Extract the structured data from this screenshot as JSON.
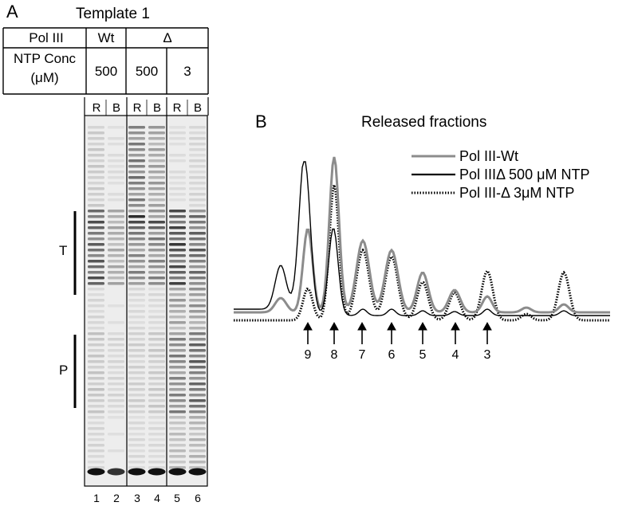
{
  "panel_a": {
    "letter": "A",
    "template_title": "Template 1",
    "table": {
      "pol_label": "Pol III",
      "wt_label": "Wt",
      "delta_label": "Δ",
      "ntp_label_line1": "NTP Conc",
      "ntp_label_line2": "(μM)",
      "conc_values": [
        "500",
        "500",
        "3"
      ]
    },
    "lane_headers": [
      "R",
      "B",
      "R",
      "B",
      "R",
      "B"
    ],
    "lane_numbers": [
      "1",
      "2",
      "3",
      "4",
      "5",
      "6"
    ],
    "bracket_t": "T",
    "bracket_p": "P"
  },
  "panel_b": {
    "letter": "B",
    "title": "Released fractions",
    "legend": [
      {
        "label": "Pol III-Wt",
        "style": "gray-solid",
        "color": "#8c8c8c"
      },
      {
        "label": "Pol IIIΔ 500 μM NTP",
        "style": "black-solid",
        "color": "#000000"
      },
      {
        "label": "Pol III-Δ 3μM NTP",
        "style": "black-dotted",
        "color": "#000000"
      }
    ],
    "arrow_labels": [
      "9",
      "8",
      "7",
      "6",
      "5",
      "4",
      "3"
    ]
  }
}
